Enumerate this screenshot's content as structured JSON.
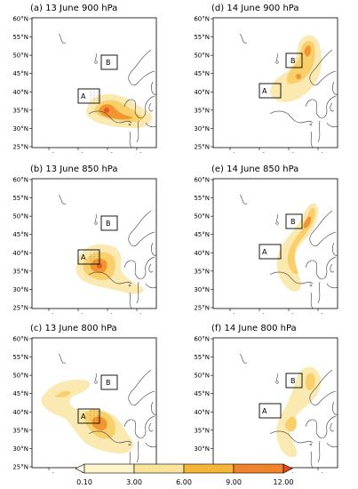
{
  "panels": [
    {
      "id": "a",
      "title": "(a) 13 June 900 hPa"
    },
    {
      "id": "b",
      "title": "(b) 13 June 850 hPa"
    },
    {
      "id": "c",
      "title": "(c) 13 June 800 hPa"
    },
    {
      "id": "d",
      "title": "(d) 14 June 900 hPa"
    },
    {
      "id": "e",
      "title": "(e) 14 June 850 hPa"
    },
    {
      "id": "f",
      "title": "(f) 14 June 800 hPa"
    }
  ],
  "lat_ticks": [
    "60°N",
    "55°N",
    "50°N",
    "45°N",
    "40°N",
    "35°N",
    "30°N",
    "25°N"
  ],
  "lon_ticks": [
    "105°E",
    "115°E",
    "125°E",
    "135°E"
  ],
  "boxes": {
    "a_label": "A",
    "b_label": "B"
  },
  "colorbar": {
    "labels": [
      "0.10",
      "3.00",
      "6.00",
      "9.00",
      "12.00"
    ],
    "colors": [
      "#fff4cc",
      "#fbe39b",
      "#f7b43b",
      "#f1832c",
      "#e8471c"
    ]
  },
  "overlay_colors": {
    "light": "#fbe9b2",
    "mid": "#f9cf6a",
    "high": "#f2942f",
    "peak": "#e65a28"
  }
}
